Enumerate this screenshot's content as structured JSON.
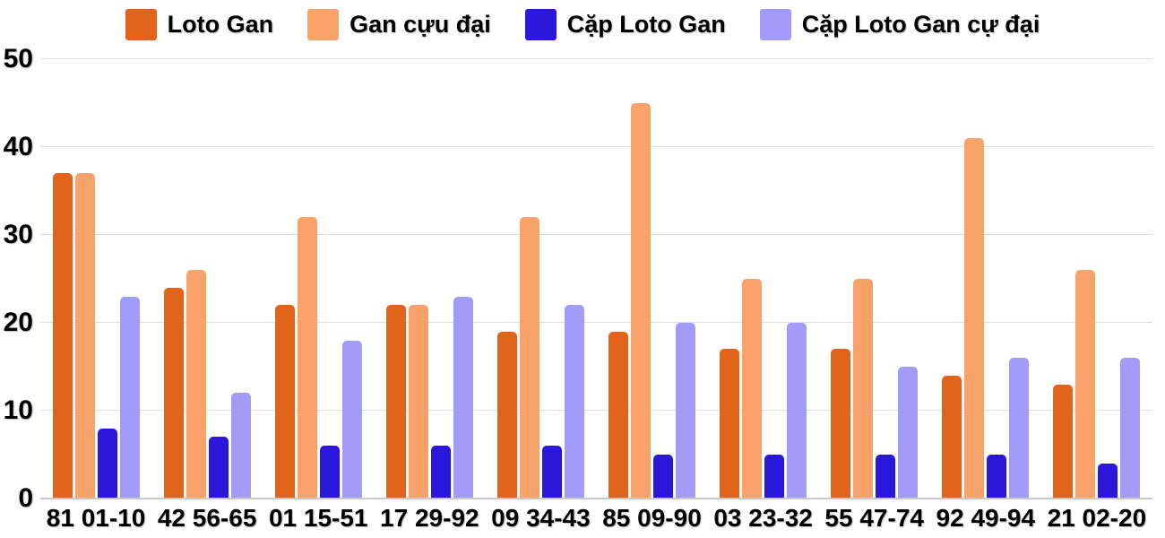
{
  "legend": [
    {
      "label": "Loto Gan",
      "color": "#E2641A"
    },
    {
      "label": "Gan cựu đại",
      "color": "#F9A36B"
    },
    {
      "label": "Cặp Loto Gan",
      "color": "#2B16DB"
    },
    {
      "label": "Cặp Loto Gan cự đại",
      "color": "#A29BF7"
    }
  ],
  "colors": {
    "gridline": "#dddddd",
    "axis_line": "#c9c9c9",
    "text": "#000000",
    "background": "#ffffff"
  },
  "chart_data": {
    "type": "bar",
    "title": "",
    "xlabel": "",
    "ylabel": "",
    "legend_position": "top",
    "grid": true,
    "ylim": [
      0,
      50
    ],
    "yticks": [
      0,
      10,
      20,
      30,
      40,
      50
    ],
    "categories": [
      "81 01-10",
      "42 56-65",
      "01 15-51",
      "17 29-92",
      "09 34-43",
      "85 09-90",
      "03 23-32",
      "55 47-74",
      "92 49-94",
      "21 02-20"
    ],
    "series": [
      {
        "name": "Loto Gan",
        "color": "#E2641A",
        "values": [
          37,
          24,
          22,
          22,
          19,
          19,
          17,
          17,
          14,
          13
        ]
      },
      {
        "name": "Gan cựu đại",
        "color": "#F9A36B",
        "values": [
          37,
          26,
          32,
          22,
          32,
          45,
          25,
          25,
          41,
          26
        ]
      },
      {
        "name": "Cặp Loto Gan",
        "color": "#2B16DB",
        "values": [
          8,
          7,
          6,
          6,
          6,
          5,
          5,
          5,
          5,
          4
        ]
      },
      {
        "name": "Cặp Loto Gan cự đại",
        "color": "#A29BF7",
        "values": [
          23,
          12,
          18,
          23,
          22,
          20,
          20,
          15,
          16,
          16
        ]
      }
    ]
  }
}
